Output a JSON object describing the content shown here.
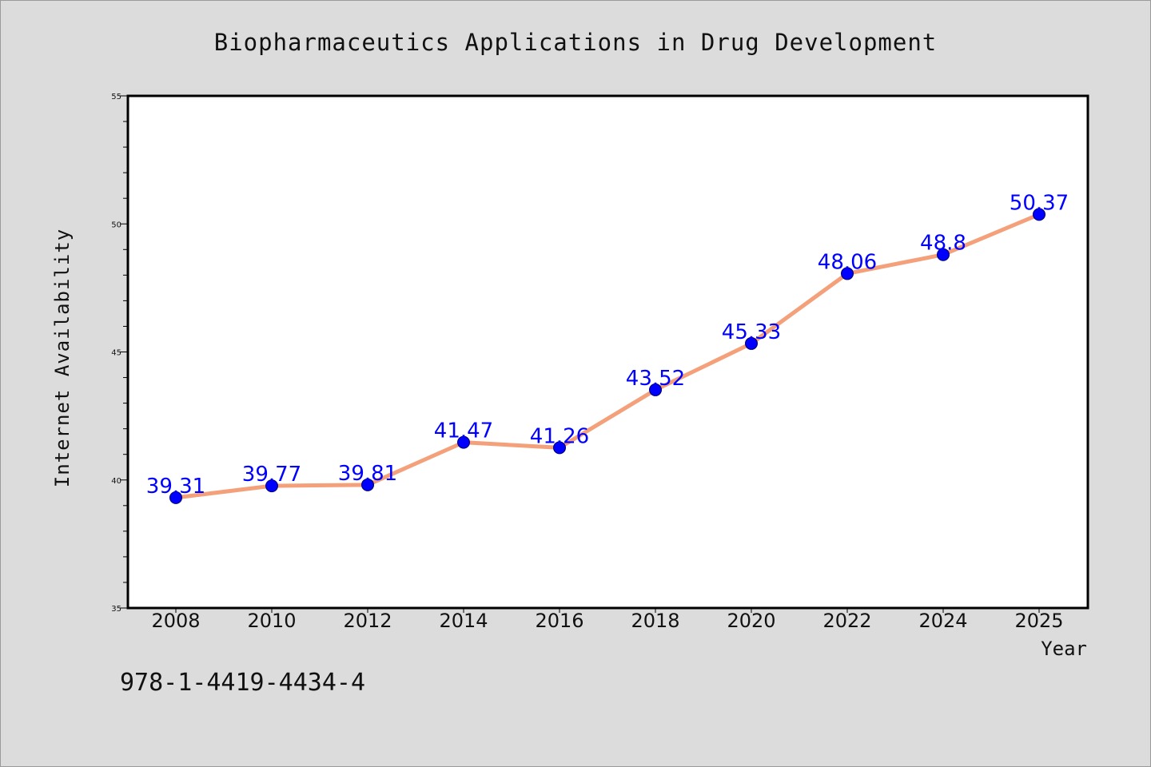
{
  "chart_data": {
    "type": "line",
    "title": "Biopharmaceutics Applications in Drug Development",
    "xlabel": "Year",
    "ylabel": "Internet Availability",
    "categories": [
      "2008",
      "2010",
      "2012",
      "2014",
      "2016",
      "2018",
      "2020",
      "2022",
      "2024",
      "2025"
    ],
    "values": [
      39.31,
      39.77,
      39.81,
      41.47,
      41.26,
      43.52,
      45.33,
      48.06,
      48.8,
      50.37
    ],
    "data_labels": [
      "39.31",
      "39.77",
      "39.81",
      "41.47",
      "41.26",
      "43.52",
      "45.33",
      "48.06",
      "48.8",
      "50.37"
    ],
    "ylim": [
      35,
      55
    ],
    "yticks": [
      "35",
      "40",
      "45",
      "50",
      "55"
    ],
    "grid": false,
    "legend": "none",
    "colors": {
      "line": "#f4a07a",
      "marker": "#0000ff",
      "label": "#0000ff",
      "background": "#dcdcdc",
      "plot": "#ffffff"
    }
  },
  "footer": {
    "isbn": "978-1-4419-4434-4"
  }
}
